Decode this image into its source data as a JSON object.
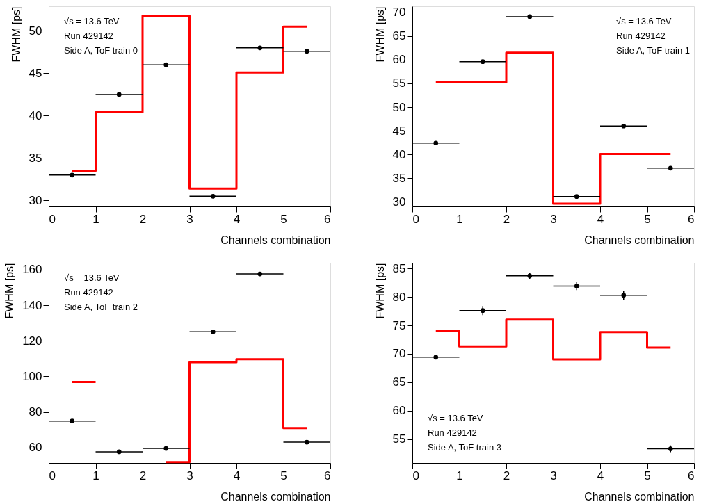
{
  "chart_data": [
    {
      "type": "step",
      "xlabel": "Channels combination",
      "ylabel": "FWHM [ps]",
      "xlim": [
        0,
        6
      ],
      "xticks": [
        0,
        1,
        2,
        3,
        4,
        5,
        6
      ],
      "ylim": [
        29.3,
        52.9
      ],
      "yticks": [
        30,
        35,
        40,
        45,
        50
      ],
      "grid": false,
      "annotations": [
        "√s = 13.6 TeV",
        "Run 429142",
        "Side A, ToF train 0"
      ],
      "series": [
        {
          "type": "step",
          "color": "#ff0000",
          "x": [
            0.5,
            1.5,
            2.5,
            3.5,
            4.5,
            5.5
          ],
          "values": [
            33.5,
            40.4,
            51.8,
            31.4,
            45.1,
            50.5
          ]
        },
        {
          "type": "scatter",
          "color": "#000000",
          "marker": "circle",
          "x": [
            0.5,
            1.5,
            2.5,
            3.5,
            4.5,
            5.5
          ],
          "values": [
            33.0,
            42.5,
            46.0,
            30.5,
            48.0,
            47.6
          ],
          "xerrors": [
            0.5,
            0.5,
            0.5,
            0.5,
            0.5,
            0.5
          ]
        }
      ]
    },
    {
      "type": "step",
      "xlabel": "Channels combination",
      "ylabel": "FWHM [ps]",
      "xlim": [
        0,
        6
      ],
      "xticks": [
        0,
        1,
        2,
        3,
        4,
        5,
        6
      ],
      "ylim": [
        29.0,
        71.3
      ],
      "yticks": [
        30,
        35,
        40,
        45,
        50,
        55,
        60,
        65,
        70
      ],
      "grid": false,
      "annotations": [
        "√s = 13.6 TeV",
        "Run 429142",
        "Side A, ToF train 1"
      ],
      "series": [
        {
          "type": "step",
          "color": "#ff0000",
          "x": [
            0.5,
            1.5,
            2.5,
            3.5,
            4.5,
            5.5
          ],
          "values": [
            55.2,
            55.2,
            61.5,
            29.6,
            40.1,
            40.1
          ]
        },
        {
          "type": "scatter",
          "color": "#000000",
          "marker": "circle",
          "x": [
            0.5,
            1.5,
            2.5,
            3.5,
            4.5,
            5.5
          ],
          "values": [
            42.4,
            59.6,
            69.1,
            31.1,
            46.0,
            37.1
          ],
          "xerrors": [
            0.5,
            0.5,
            0.5,
            0.5,
            0.5,
            0.5
          ]
        }
      ]
    },
    {
      "type": "step",
      "xlabel": "Channels combination",
      "ylabel": "FWHM [ps]",
      "xlim": [
        0,
        6
      ],
      "xticks": [
        0,
        1,
        2,
        3,
        4,
        5,
        6
      ],
      "ylim": [
        51.3,
        163.9
      ],
      "yticks": [
        60,
        80,
        100,
        120,
        140,
        160
      ],
      "grid": false,
      "annotations": [
        "√s = 13.6 TeV",
        "Run 429142",
        "Side A, ToF train 2"
      ],
      "series": [
        {
          "type": "step",
          "color": "#ff0000",
          "x": [
            0.5,
            1.5,
            2.5,
            3.5,
            4.5,
            5.5
          ],
          "values": [
            96.8,
            null,
            51.8,
            108.0,
            109.7,
            70.9
          ]
        },
        {
          "type": "scatter",
          "color": "#000000",
          "marker": "circle",
          "x": [
            0.5,
            1.5,
            2.5,
            3.5,
            4.5,
            5.5
          ],
          "values": [
            74.9,
            57.6,
            59.5,
            125.1,
            157.6,
            63.0
          ],
          "xerrors": [
            0.5,
            0.5,
            0.5,
            0.5,
            0.5,
            0.5
          ]
        }
      ]
    },
    {
      "type": "step",
      "xlabel": "Channels combination",
      "ylabel": "FWHM [ps]",
      "xlim": [
        0,
        6
      ],
      "xticks": [
        0,
        1,
        2,
        3,
        4,
        5,
        6
      ],
      "ylim": [
        50.8,
        86.0
      ],
      "yticks": [
        55,
        60,
        65,
        70,
        75,
        80,
        85
      ],
      "grid": false,
      "annotations": [
        "√s = 13.6 TeV",
        "Run 429142",
        "Side A, ToF train 3"
      ],
      "series": [
        {
          "type": "step",
          "color": "#ff0000",
          "x": [
            0.5,
            1.5,
            2.5,
            3.5,
            4.5,
            5.5
          ],
          "values": [
            74.0,
            71.3,
            76.0,
            69.0,
            73.8,
            71.1
          ]
        },
        {
          "type": "scatter",
          "color": "#000000",
          "marker": "circle",
          "x": [
            0.5,
            1.5,
            2.5,
            3.5,
            4.5,
            5.5
          ],
          "values": [
            69.4,
            77.6,
            83.7,
            81.9,
            80.3,
            53.3
          ],
          "xerrors": [
            0.5,
            0.5,
            0.5,
            0.5,
            0.5,
            0.5
          ],
          "errors": [
            0.3,
            0.8,
            0.5,
            0.7,
            0.8,
            0.6
          ]
        }
      ]
    }
  ]
}
